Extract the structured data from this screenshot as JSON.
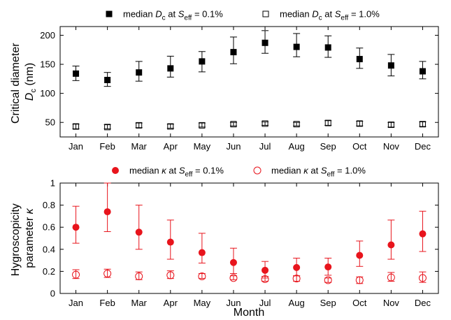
{
  "chart_data": [
    {
      "type": "scatter",
      "categories": [
        "Jan",
        "Feb",
        "Mar",
        "Apr",
        "May",
        "Jun",
        "Jul",
        "Aug",
        "Sep",
        "Oct",
        "Nov",
        "Dec"
      ],
      "ylabel_line1": "Critical diameter",
      "ylabel_line2": {
        "main": "D",
        "sub": "c",
        "unit": " (nm)"
      },
      "ylim": [
        25,
        215
      ],
      "yticks": [
        "50",
        "100",
        "150",
        "200"
      ],
      "legend": [
        {
          "prefix": "median ",
          "var": "D",
          "varsub": "c",
          "mid": " at ",
          "s": "S",
          "ssub": "eff",
          "suffix": " = 0.1%"
        },
        {
          "prefix": "median ",
          "var": "D",
          "varsub": "c",
          "mid": " at ",
          "s": "S",
          "ssub": "eff",
          "suffix": " = 1.0%"
        }
      ],
      "series": [
        {
          "marker": "filled-square",
          "color": "#000000",
          "values": [
            134,
            123,
            136,
            143,
            155,
            171,
            187,
            180,
            179,
            159,
            148,
            138
          ],
          "lower": [
            122,
            112,
            121,
            128,
            137,
            151,
            169,
            163,
            162,
            143,
            130,
            125
          ],
          "upper": [
            147,
            136,
            155,
            164,
            172,
            197,
            208,
            203,
            199,
            178,
            167,
            155
          ]
        },
        {
          "marker": "open-square",
          "color": "#000000",
          "values": [
            43,
            42,
            45,
            43,
            45,
            47,
            48,
            47,
            49,
            48,
            46,
            47
          ],
          "lower": [
            39,
            39,
            41,
            40,
            42,
            44,
            45,
            44,
            45,
            44,
            42,
            43
          ],
          "upper": [
            47,
            46,
            49,
            47,
            49,
            50,
            51,
            50,
            53,
            52,
            50,
            51
          ]
        }
      ]
    },
    {
      "type": "scatter",
      "categories": [
        "Jan",
        "Feb",
        "Mar",
        "Apr",
        "May",
        "Jun",
        "Jul",
        "Aug",
        "Sep",
        "Oct",
        "Nov",
        "Dec"
      ],
      "xlabel": "Month",
      "ylabel_line1": "Hygroscopicity",
      "ylabel_line2": {
        "main": "parameter ",
        "greek": "κ"
      },
      "ylim": [
        0,
        1
      ],
      "yticks": [
        "0",
        "0.2",
        "0.4",
        "0.6",
        "0.8",
        "1"
      ],
      "legend": [
        {
          "prefix": "median ",
          "greek": "κ",
          "mid": " at ",
          "s": "S",
          "ssub": "eff",
          "suffix": " = 0.1%"
        },
        {
          "prefix": "median ",
          "greek": "κ",
          "mid": " at ",
          "s": "S",
          "ssub": "eff",
          "suffix": " = 1.0%"
        }
      ],
      "series": [
        {
          "marker": "filled-circle",
          "color": "#e8141c",
          "values": [
            0.6,
            0.74,
            0.555,
            0.465,
            0.37,
            0.28,
            0.21,
            0.235,
            0.24,
            0.345,
            0.44,
            0.54
          ],
          "lower": [
            0.455,
            0.56,
            0.4,
            0.31,
            0.275,
            0.18,
            0.14,
            0.16,
            0.165,
            0.245,
            0.31,
            0.38
          ],
          "upper": [
            0.79,
            1.0,
            0.8,
            0.665,
            0.545,
            0.41,
            0.29,
            0.32,
            0.32,
            0.475,
            0.665,
            0.745
          ]
        },
        {
          "marker": "open-circle",
          "color": "#e8141c",
          "values": [
            0.17,
            0.18,
            0.155,
            0.165,
            0.155,
            0.14,
            0.13,
            0.135,
            0.12,
            0.12,
            0.145,
            0.14
          ],
          "lower": [
            0.135,
            0.145,
            0.125,
            0.135,
            0.135,
            0.125,
            0.11,
            0.11,
            0.1,
            0.09,
            0.11,
            0.1
          ],
          "upper": [
            0.215,
            0.22,
            0.195,
            0.205,
            0.18,
            0.16,
            0.155,
            0.16,
            0.14,
            0.15,
            0.19,
            0.195
          ]
        }
      ]
    }
  ]
}
